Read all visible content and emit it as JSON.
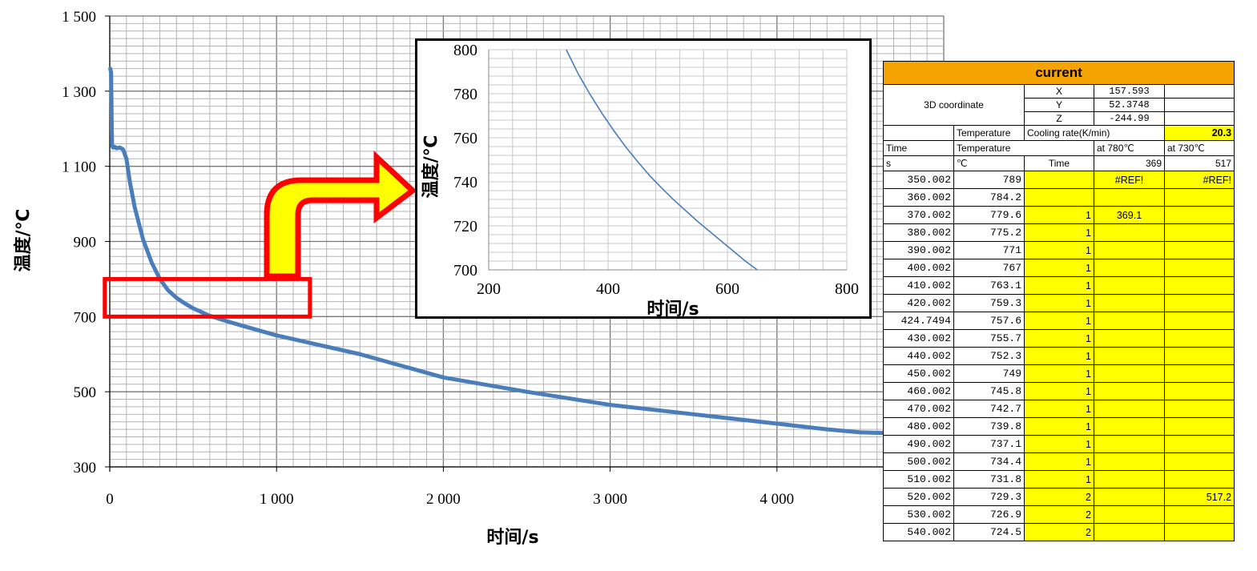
{
  "chart_data": [
    {
      "type": "line",
      "title": "",
      "xlabel": "时间/s",
      "ylabel": "温度/℃",
      "xlim": [
        0,
        5000
      ],
      "ylim": [
        300,
        1500
      ],
      "x_ticks": [
        "0",
        "1 000",
        "2 000",
        "3 000",
        "4 000"
      ],
      "y_ticks": [
        "300",
        "500",
        "700",
        "900",
        "1 100",
        "1 300",
        "1 500"
      ],
      "grid": true,
      "highlight_box": {
        "x": [
          -30,
          1200
        ],
        "y": [
          700,
          800
        ]
      },
      "series": [
        {
          "name": "",
          "color": "#4a7ebb",
          "x": [
            3,
            8,
            10,
            12,
            14,
            20,
            30,
            40,
            60,
            80,
            100,
            120,
            150,
            200,
            250,
            300,
            350,
            400,
            450,
            500,
            600,
            700,
            800,
            1000,
            1200,
            1500,
            2000,
            2500,
            3000,
            3500,
            4000,
            4300,
            4500,
            4650
          ],
          "y": [
            1360,
            1350,
            1280,
            1200,
            1155,
            1150,
            1152,
            1148,
            1150,
            1145,
            1120,
            1060,
            990,
            905,
            845,
            800,
            770,
            750,
            735,
            722,
            702,
            688,
            675,
            650,
            630,
            600,
            538,
            500,
            465,
            440,
            415,
            400,
            392,
            390
          ]
        }
      ]
    },
    {
      "type": "line",
      "title": "",
      "xlabel": "时间/s",
      "ylabel": "温度/℃",
      "xlim": [
        200,
        800
      ],
      "ylim": [
        700,
        800
      ],
      "x_ticks": [
        "200",
        "400",
        "600",
        "800"
      ],
      "y_ticks": [
        "700",
        "720",
        "740",
        "760",
        "780",
        "800"
      ],
      "grid": true,
      "series": [
        {
          "name": "",
          "color": "#4a7ebb",
          "x": [
            330,
            350,
            370,
            390,
            410,
            430,
            450,
            470,
            490,
            510,
            530,
            550,
            570,
            590,
            610,
            630,
            650
          ],
          "y": [
            800,
            789,
            779.6,
            771,
            763.1,
            755.7,
            749,
            742.7,
            737.1,
            731.8,
            726.9,
            722,
            717.5,
            713,
            708.5,
            704,
            700
          ]
        }
      ]
    }
  ],
  "sheet": {
    "title": "current",
    "coord_label": "3D coordinate",
    "coords": [
      {
        "axis": "X",
        "value": "157.593"
      },
      {
        "axis": "Y",
        "value": "52.3748"
      },
      {
        "axis": "Z",
        "value": "-244.99"
      }
    ],
    "row_temp": "Temperature",
    "row_cooling": "Cooling rate(K/min)",
    "row_cooling_value": "20.3",
    "hdr_time": "Time",
    "hdr_temperature": "Temperature",
    "hdr_at780": "at 780℃",
    "hdr_at730": "at 730℃",
    "unit_s": "s",
    "unit_c": "℃",
    "unit_time": "Time",
    "unit_v780": "369",
    "unit_v730": "517",
    "rows": [
      {
        "t": "350.002",
        "temp": "789",
        "flag": "",
        "a780": "#REF!",
        "a730": "#REF!"
      },
      {
        "t": "360.002",
        "temp": "784.2",
        "flag": "",
        "a780": "",
        "a730": ""
      },
      {
        "t": "370.002",
        "temp": "779.6",
        "flag": "1",
        "a780": "369.1",
        "a730": ""
      },
      {
        "t": "380.002",
        "temp": "775.2",
        "flag": "1",
        "a780": "",
        "a730": ""
      },
      {
        "t": "390.002",
        "temp": "771",
        "flag": "1",
        "a780": "",
        "a730": ""
      },
      {
        "t": "400.002",
        "temp": "767",
        "flag": "1",
        "a780": "",
        "a730": ""
      },
      {
        "t": "410.002",
        "temp": "763.1",
        "flag": "1",
        "a780": "",
        "a730": ""
      },
      {
        "t": "420.002",
        "temp": "759.3",
        "flag": "1",
        "a780": "",
        "a730": ""
      },
      {
        "t": "424.7494",
        "temp": "757.6",
        "flag": "1",
        "a780": "",
        "a730": ""
      },
      {
        "t": "430.002",
        "temp": "755.7",
        "flag": "1",
        "a780": "",
        "a730": ""
      },
      {
        "t": "440.002",
        "temp": "752.3",
        "flag": "1",
        "a780": "",
        "a730": ""
      },
      {
        "t": "450.002",
        "temp": "749",
        "flag": "1",
        "a780": "",
        "a730": ""
      },
      {
        "t": "460.002",
        "temp": "745.8",
        "flag": "1",
        "a780": "",
        "a730": ""
      },
      {
        "t": "470.002",
        "temp": "742.7",
        "flag": "1",
        "a780": "",
        "a730": ""
      },
      {
        "t": "480.002",
        "temp": "739.8",
        "flag": "1",
        "a780": "",
        "a730": ""
      },
      {
        "t": "490.002",
        "temp": "737.1",
        "flag": "1",
        "a780": "",
        "a730": ""
      },
      {
        "t": "500.002",
        "temp": "734.4",
        "flag": "1",
        "a780": "",
        "a730": ""
      },
      {
        "t": "510.002",
        "temp": "731.8",
        "flag": "1",
        "a780": "",
        "a730": ""
      },
      {
        "t": "520.002",
        "temp": "729.3",
        "flag": "2",
        "a780": "",
        "a730": "517.2"
      },
      {
        "t": "530.002",
        "temp": "726.9",
        "flag": "2",
        "a780": "",
        "a730": ""
      },
      {
        "t": "540.002",
        "temp": "724.5",
        "flag": "2",
        "a780": "",
        "a730": ""
      }
    ]
  },
  "colors": {
    "curve": "#4a7ebb",
    "highlight": "#ff0000",
    "arrow_fill": "#ffff00",
    "sheet_header": "#f5a300",
    "sheet_yellow": "#ffff00"
  }
}
